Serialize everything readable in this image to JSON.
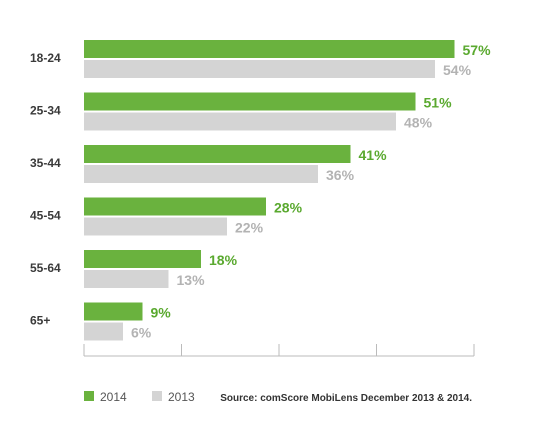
{
  "chart_data": {
    "type": "bar",
    "orientation": "horizontal",
    "categories": [
      "18-24",
      "25-34",
      "35-44",
      "45-54",
      "55-64",
      "65+"
    ],
    "series": [
      {
        "name": "2014",
        "values": [
          57,
          51,
          41,
          28,
          18,
          9
        ],
        "color": "#6ab23e",
        "label_color": "#5aa92f"
      },
      {
        "name": "2013",
        "values": [
          54,
          48,
          36,
          22,
          13,
          6
        ],
        "color": "#d4d4d4",
        "label_color": "#b3b3b3"
      }
    ],
    "value_suffix": "%",
    "xlim": [
      0,
      60
    ],
    "grid": false,
    "legend_position": "bottom-left",
    "source": "Source: comScore MobiLens December 2013 & 2014."
  }
}
